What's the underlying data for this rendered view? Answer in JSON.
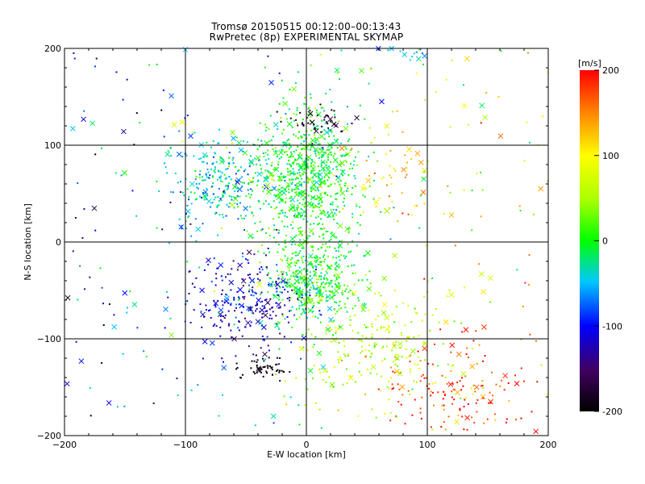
{
  "header": {
    "title_line1": "Tromsø 20150515 00:12:00–00:13:43",
    "title_line2": "RwPretec (8p) EXPERIMENTAL SKYMAP"
  },
  "colorbar": {
    "unit_label": "[m/s]",
    "ticks": [
      "200",
      "100",
      "0",
      "-100",
      "-200"
    ],
    "range": [
      -200,
      200
    ]
  },
  "chart_data": {
    "type": "scatter",
    "title": "Tromsø 20150515 00:12:00–00:13:43",
    "subtitle": "RwPretec (8p) EXPERIMENTAL SKYMAP",
    "xlabel": "E-W location [km]",
    "ylabel": "N-S location [km]",
    "xlim": [
      -200,
      200
    ],
    "ylim": [
      -200,
      200
    ],
    "xticks": [
      "−200",
      "−100",
      "0",
      "100",
      "200"
    ],
    "yticks": [
      "−200",
      "−100",
      "0",
      "100",
      "200"
    ],
    "grid": "lines at −100, 0, 100 km on both axes",
    "color_scale": "velocity [m/s], rainbow from black (−200) through blue (−100), green (0), yellow (100) to red (200)",
    "markers": "small dots (many) and × crosses",
    "clusters": [
      {
        "center": [
          0,
          70
        ],
        "spread": [
          22,
          35
        ],
        "velocity": 0,
        "label": "dense green band north"
      },
      {
        "center": [
          5,
          -40
        ],
        "spread": [
          20,
          25
        ],
        "velocity": -5,
        "label": "dense green band south-centre"
      },
      {
        "center": [
          -70,
          60
        ],
        "spread": [
          25,
          25
        ],
        "velocity": -40,
        "label": "cyan north-west"
      },
      {
        "center": [
          -50,
          -60
        ],
        "spread": [
          25,
          25
        ],
        "velocity": -120,
        "label": "blue south-west"
      },
      {
        "center": [
          -35,
          -130
        ],
        "spread": [
          12,
          6
        ],
        "velocity": -195,
        "label": "black cluster south-west"
      },
      {
        "center": [
          10,
          125
        ],
        "spread": [
          15,
          8
        ],
        "velocity": -190,
        "label": "black cluster north"
      },
      {
        "center": [
          120,
          -150
        ],
        "spread": [
          30,
          25
        ],
        "velocity": 180,
        "label": "red cluster south-east"
      },
      {
        "center": [
          60,
          -110
        ],
        "spread": [
          30,
          30
        ],
        "velocity": 60,
        "label": "yellow-green south-east"
      },
      {
        "center": [
          80,
          195
        ],
        "spread": [
          10,
          6
        ],
        "velocity": -50,
        "label": "cyan crosses top"
      },
      {
        "center": [
          70,
          60
        ],
        "spread": [
          25,
          25
        ],
        "velocity": 120,
        "label": "orange north-east"
      }
    ],
    "approx_point_count": 2500
  }
}
